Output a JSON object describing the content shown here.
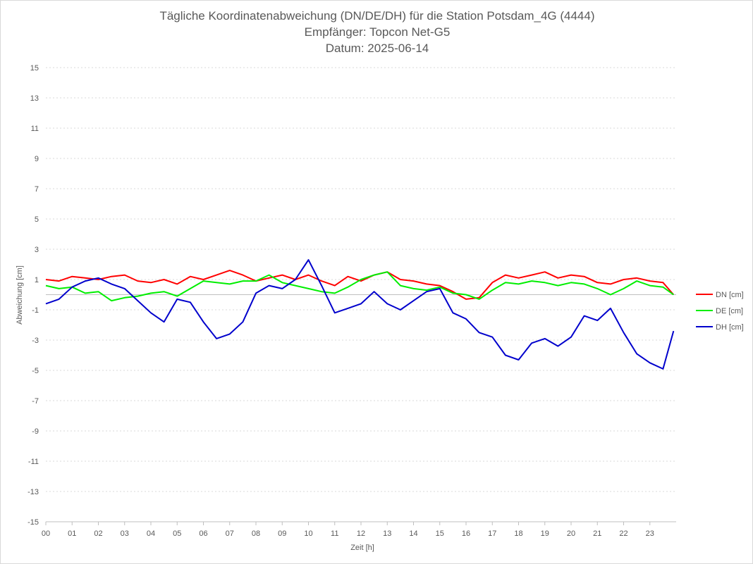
{
  "chart_data": {
    "type": "line",
    "title": [
      "Tägliche Koordinatenabweichung (DN/DE/DH) für die Station Potsdam_4G (4444)",
      "Empfänger: Topcon Net-G5",
      "Datum: 2025-06-14"
    ],
    "xlabel": "Zeit [h]",
    "ylabel": "Abweichung [cm]",
    "xlim": [
      0,
      24
    ],
    "ylim": [
      -15,
      15
    ],
    "xticks": [
      "00",
      "01",
      "02",
      "03",
      "04",
      "05",
      "06",
      "07",
      "08",
      "09",
      "10",
      "11",
      "12",
      "13",
      "14",
      "15",
      "16",
      "17",
      "18",
      "19",
      "20",
      "21",
      "22",
      "23"
    ],
    "yticks": [
      "15",
      "13",
      "11",
      "9",
      "7",
      "5",
      "3",
      "1",
      "-1",
      "-3",
      "-5",
      "-7",
      "-9",
      "-11",
      "-13",
      "-15"
    ],
    "grid": true,
    "legend_position": "right",
    "x": [
      0,
      0.5,
      1,
      1.5,
      2,
      2.5,
      3,
      3.5,
      4,
      4.5,
      5,
      5.5,
      6,
      6.5,
      7,
      7.5,
      8,
      8.5,
      9,
      9.5,
      10,
      10.5,
      11,
      11.5,
      12,
      12.5,
      13,
      13.5,
      14,
      14.5,
      15,
      15.5,
      16,
      16.5,
      17,
      17.5,
      18,
      18.5,
      19,
      19.5,
      20,
      20.5,
      21,
      21.5,
      22,
      22.5,
      23,
      23.5,
      23.9
    ],
    "series": [
      {
        "name": "DN [cm]",
        "color": "#ff0000",
        "values": [
          1.0,
          0.9,
          1.2,
          1.1,
          1.0,
          1.2,
          1.3,
          0.9,
          0.8,
          1.0,
          0.7,
          1.2,
          1.0,
          1.3,
          1.6,
          1.3,
          0.9,
          1.1,
          1.3,
          1.0,
          1.3,
          0.9,
          0.6,
          1.2,
          0.9,
          1.3,
          1.5,
          1.0,
          0.9,
          0.7,
          0.6,
          0.2,
          -0.3,
          -0.2,
          0.8,
          1.3,
          1.1,
          1.3,
          1.5,
          1.1,
          1.3,
          1.2,
          0.8,
          0.7,
          1.0,
          1.1,
          0.9,
          0.8,
          0.0
        ]
      },
      {
        "name": "DE [cm]",
        "color": "#00ee00",
        "values": [
          0.6,
          0.4,
          0.5,
          0.1,
          0.2,
          -0.4,
          -0.2,
          -0.1,
          0.1,
          0.2,
          -0.1,
          0.4,
          0.9,
          0.8,
          0.7,
          0.9,
          0.9,
          1.3,
          0.8,
          0.6,
          0.4,
          0.2,
          0.1,
          0.5,
          1.0,
          1.3,
          1.5,
          0.6,
          0.4,
          0.3,
          0.5,
          0.1,
          0.0,
          -0.3,
          0.3,
          0.8,
          0.7,
          0.9,
          0.8,
          0.6,
          0.8,
          0.7,
          0.4,
          0.0,
          0.4,
          0.9,
          0.6,
          0.5,
          0.0
        ]
      },
      {
        "name": "DH [cm]",
        "color": "#0000cc",
        "values": [
          -0.6,
          -0.3,
          0.5,
          0.9,
          1.1,
          0.7,
          0.4,
          -0.4,
          -1.2,
          -1.8,
          -0.3,
          -0.5,
          -1.8,
          -2.9,
          -2.6,
          -1.8,
          0.1,
          0.6,
          0.4,
          1.0,
          2.3,
          0.6,
          -1.2,
          -0.9,
          -0.6,
          0.2,
          -0.6,
          -1.0,
          -0.4,
          0.2,
          0.4,
          -1.2,
          -1.6,
          -2.5,
          -2.8,
          -4.0,
          -4.3,
          -3.2,
          -2.9,
          -3.4,
          -2.8,
          -1.4,
          -1.7,
          -0.9,
          -2.5,
          -3.9,
          -4.5,
          -4.9,
          -2.4
        ]
      }
    ]
  }
}
